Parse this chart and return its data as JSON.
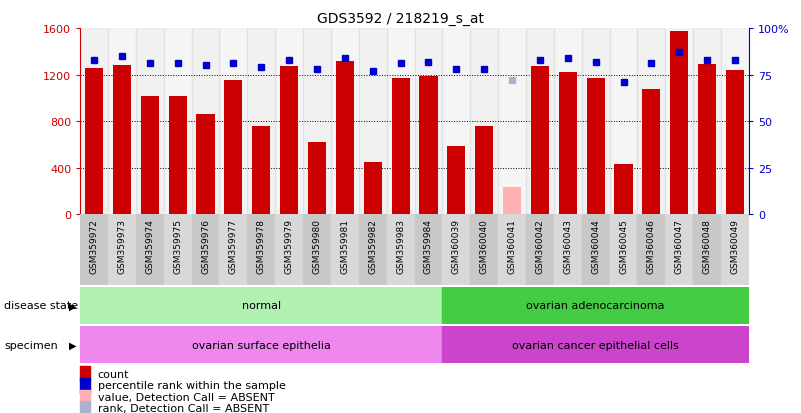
{
  "title": "GDS3592 / 218219_s_at",
  "samples": [
    "GSM359972",
    "GSM359973",
    "GSM359974",
    "GSM359975",
    "GSM359976",
    "GSM359977",
    "GSM359978",
    "GSM359979",
    "GSM359980",
    "GSM359981",
    "GSM359982",
    "GSM359983",
    "GSM359984",
    "GSM360039",
    "GSM360040",
    "GSM360041",
    "GSM360042",
    "GSM360043",
    "GSM360044",
    "GSM360045",
    "GSM360046",
    "GSM360047",
    "GSM360048",
    "GSM360049"
  ],
  "counts": [
    1260,
    1280,
    1020,
    1020,
    860,
    1150,
    760,
    1270,
    620,
    1320,
    450,
    1170,
    1190,
    590,
    760,
    null,
    1270,
    1220,
    1170,
    430,
    1080,
    1570,
    1290,
    1240
  ],
  "absent_count_idx": 15,
  "absent_count_val": 230,
  "percentile_ranks": [
    83,
    85,
    81,
    81,
    80,
    81,
    79,
    83,
    78,
    84,
    77,
    81,
    82,
    78,
    78,
    null,
    83,
    84,
    82,
    71,
    81,
    87,
    83,
    83
  ],
  "absent_rank_idx": 15,
  "absent_rank_val": 72,
  "count_color": "#cc0000",
  "absent_count_color": "#ffb0b0",
  "rank_color": "#0000cc",
  "absent_rank_color": "#b0b0cc",
  "bar_width": 0.65,
  "ylim_left": [
    0,
    1600
  ],
  "ylim_right": [
    0,
    100
  ],
  "yticks_left": [
    0,
    400,
    800,
    1200,
    1600
  ],
  "yticks_right": [
    0,
    25,
    50,
    75,
    100
  ],
  "ytick_labels_right": [
    "0",
    "25",
    "50",
    "75",
    "100%"
  ],
  "disease_state_groups": [
    {
      "label": "normal",
      "start": 0,
      "end": 13,
      "color": "#b0f0b0"
    },
    {
      "label": "ovarian adenocarcinoma",
      "start": 13,
      "end": 24,
      "color": "#44cc44"
    }
  ],
  "specimen_groups": [
    {
      "label": "ovarian surface epithelia",
      "start": 0,
      "end": 13,
      "color": "#ee88ee"
    },
    {
      "label": "ovarian cancer epithelial cells",
      "start": 13,
      "end": 24,
      "color": "#cc44cc"
    }
  ],
  "disease_state_label": "disease state",
  "specimen_label": "specimen",
  "legend_items": [
    {
      "label": "count",
      "color": "#cc0000"
    },
    {
      "label": "percentile rank within the sample",
      "color": "#0000cc"
    },
    {
      "label": "value, Detection Call = ABSENT",
      "color": "#ffb0b0"
    },
    {
      "label": "rank, Detection Call = ABSENT",
      "color": "#b0b0cc"
    }
  ],
  "tick_bg_even": "#c8c8c8",
  "tick_bg_odd": "#d8d8d8",
  "background_color": "#ffffff"
}
